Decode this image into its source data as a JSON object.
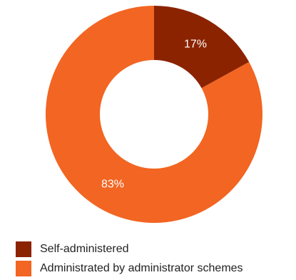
{
  "chart_data": {
    "type": "pie",
    "style": "donut",
    "categories": [
      "Self-administered",
      "Administrated by administrator schemes"
    ],
    "values": [
      17,
      83
    ],
    "labels": [
      "17%",
      "83%"
    ],
    "colors": [
      "#8b2300",
      "#f26522"
    ],
    "title": "",
    "legend_position": "bottom-left"
  },
  "legend": {
    "items": [
      {
        "label": "Self-administered",
        "color": "#8b2300"
      },
      {
        "label": "Administrated by administrator schemes",
        "color": "#f26522"
      }
    ]
  }
}
